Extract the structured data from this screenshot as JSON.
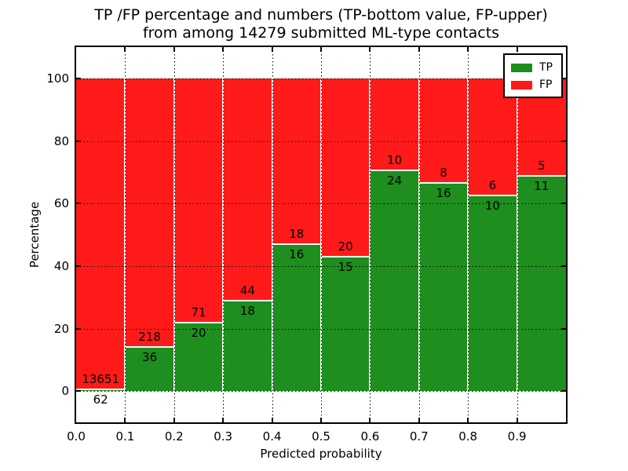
{
  "title": {
    "line1": "TP /FP percentage and numbers (TP-bottom value, FP-upper)",
    "line2": "from among 14279 submitted ML-type contacts"
  },
  "chart_data": {
    "type": "bar",
    "stacked": true,
    "normalized_to_percent": true,
    "title": "TP /FP percentage and numbers (TP-bottom value, FP-upper) from among 14279 submitted ML-type contacts",
    "xlabel": "Predicted probability",
    "ylabel": "Percentage",
    "xlim": [
      0.0,
      1.0
    ],
    "ylim": [
      -10,
      110
    ],
    "x_tick_labels": [
      "0.0",
      "0.1",
      "0.2",
      "0.3",
      "0.4",
      "0.5",
      "0.6",
      "0.7",
      "0.8",
      "0.9"
    ],
    "y_ticks": [
      0,
      20,
      40,
      60,
      80,
      100
    ],
    "grid": "dotted black at all ticks, drawn above bars",
    "legend_position": "upper right",
    "total_contacts": 14279,
    "categories": [
      "0.0-0.1",
      "0.1-0.2",
      "0.2-0.3",
      "0.3-0.4",
      "0.4-0.5",
      "0.5-0.6",
      "0.6-0.7",
      "0.7-0.8",
      "0.8-0.9",
      "0.9-1.0"
    ],
    "series": [
      {
        "name": "TP",
        "color": "#1e8e1e",
        "position": "bottom",
        "values": [
          62,
          36,
          20,
          18,
          16,
          15,
          24,
          16,
          10,
          11
        ]
      },
      {
        "name": "FP",
        "color": "#ff1a1a",
        "position": "top",
        "values": [
          13651,
          218,
          71,
          44,
          18,
          20,
          10,
          8,
          6,
          5
        ]
      }
    ],
    "bar_label_rule": "count of FP printed just above TP/FP boundary, count of TP just below it",
    "tp_percent_per_bin": [
      0.45,
      14.17,
      21.98,
      29.03,
      47.06,
      42.86,
      70.59,
      66.67,
      62.5,
      68.75
    ]
  }
}
